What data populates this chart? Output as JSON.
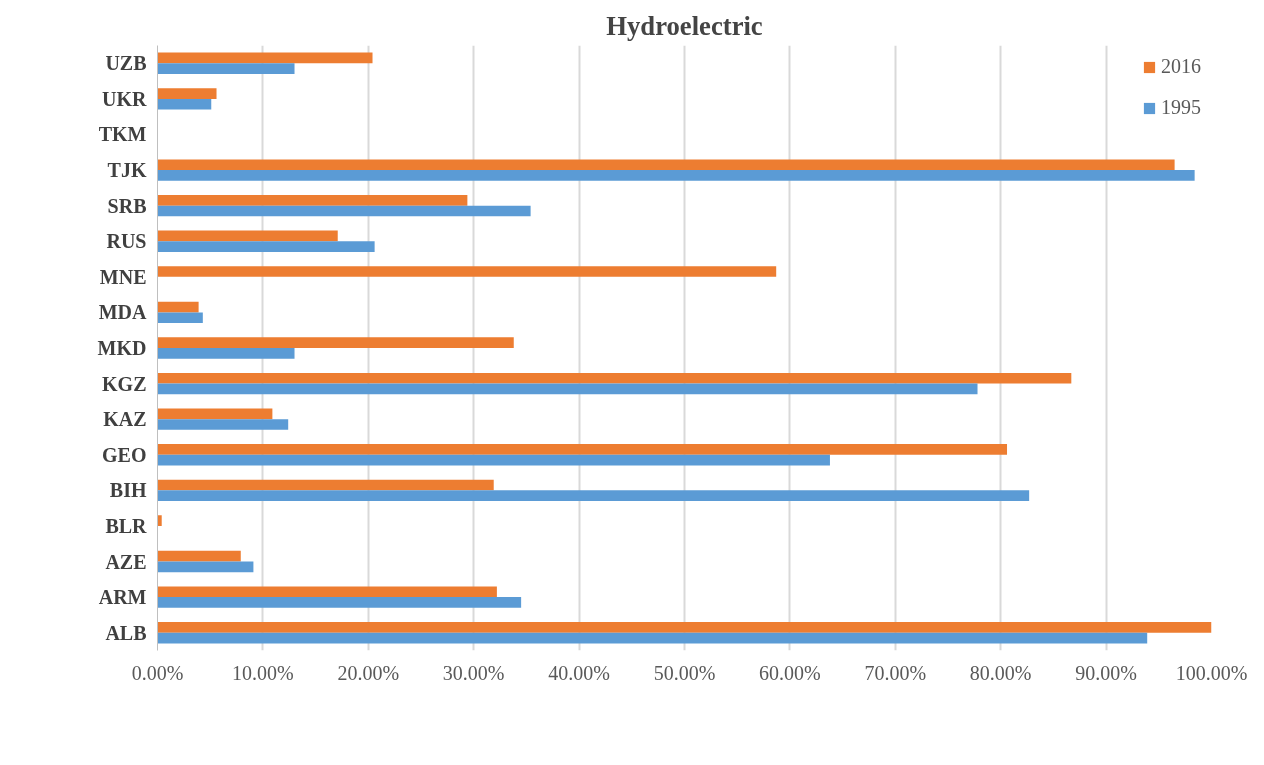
{
  "chart_data": {
    "type": "bar",
    "orientation": "horizontal",
    "title": "Hydroelectric",
    "categories": [
      "UZB",
      "UKR",
      "TKM",
      "TJK",
      "SRB",
      "RUS",
      "MNE",
      "MDA",
      "MKD",
      "KGZ",
      "KAZ",
      "GEO",
      "BIH",
      "BLR",
      "AZE",
      "ARM",
      "ALB"
    ],
    "series": [
      {
        "name": "2016",
        "color": "#ed7d31",
        "values": [
          20.4,
          5.6,
          0,
          96.5,
          29.4,
          17.1,
          58.7,
          3.9,
          33.8,
          86.7,
          10.9,
          80.6,
          31.9,
          0.4,
          7.9,
          32.2,
          100
        ]
      },
      {
        "name": "1995",
        "color": "#5b9bd5",
        "values": [
          13.0,
          5.1,
          0,
          98.4,
          35.4,
          20.6,
          0,
          4.3,
          13.0,
          77.8,
          12.4,
          63.8,
          82.7,
          0,
          9.1,
          34.5,
          93.9
        ]
      }
    ],
    "xlim": [
      0,
      100
    ],
    "xticks": [
      {
        "value": 0,
        "label": "0.00%"
      },
      {
        "value": 10,
        "label": "10.00%"
      },
      {
        "value": 20,
        "label": "20.00%"
      },
      {
        "value": 30,
        "label": "30.00%"
      },
      {
        "value": 40,
        "label": "40.00%"
      },
      {
        "value": 50,
        "label": "50.00%"
      },
      {
        "value": 60,
        "label": "60.00%"
      },
      {
        "value": 70,
        "label": "70.00%"
      },
      {
        "value": 80,
        "label": "80.00%"
      },
      {
        "value": 90,
        "label": "90.00%"
      },
      {
        "value": 100,
        "label": "100.00%"
      }
    ],
    "grid": "x",
    "legend": "top right"
  }
}
